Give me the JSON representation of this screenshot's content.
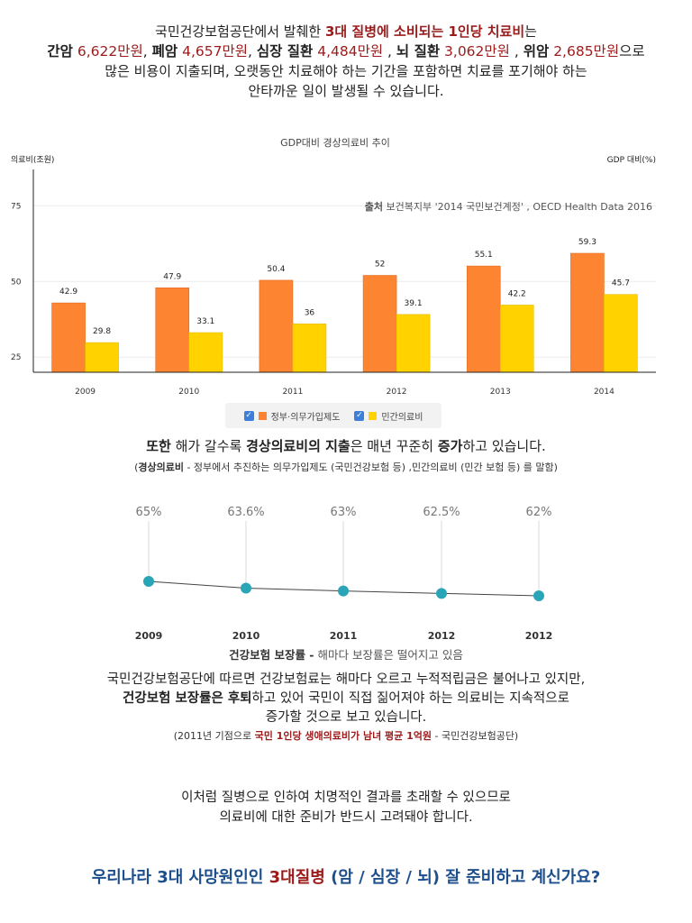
{
  "intro": {
    "line1_a": "국민건강보험공단에서 발췌한 ",
    "line1_b": "3대 질병에 소비되는 1인당 치료비",
    "line1_c": "는",
    "items": [
      {
        "name": "간암",
        "amount": "6,622만원",
        "sep": ", "
      },
      {
        "name": "폐암",
        "amount": "4,657만원",
        "sep": ", "
      },
      {
        "name": "심장 질환",
        "amount": "4,484만원",
        "sep": " , "
      },
      {
        "name": "뇌 질환",
        "amount": "3,062만원",
        "sep": " , "
      },
      {
        "name": "위암",
        "amount": "2,685만원",
        "sep": "으로"
      }
    ],
    "line3": "많은 비용이 지출되며, 오랫동안 치료해야 하는 기간을 포함하면 치료를 포기해야 하는",
    "line4": "안타까운 일이 발생될 수 있습니다."
  },
  "bar_chart": {
    "source_label": "출처",
    "source_text": " 보건복지부 '2014 국민보건계정' , OECD Health Data 2016",
    "colors": {
      "government": "#fd8431",
      "private": "#ffd200",
      "axis": "#222222",
      "grid": "#ececec"
    }
  },
  "legend": {
    "government": "정부·의무가입제도",
    "private": "민간의료비"
  },
  "trend": {
    "a": "또한",
    "b": " 해가 갈수록 ",
    "c": "경상의료비의 지출",
    "d": "은 매년 꾸준히 ",
    "e": "증가",
    "f": "하고 있습니다."
  },
  "note": {
    "open": "(",
    "term": "경상의료비",
    "text": " - 정부에서 추진하는 의무가입제도 (국민건강보험 등)  ,민간의료비 (민간 보험 등) 를 말함)"
  },
  "line_caption": {
    "bold": "건강보험 보장률 -",
    "rest": " 해마다 보장률은 떨어지고 있음"
  },
  "body": {
    "line1": "국민건강보험공단에 따르면 건강보험료는 해마다 오르고 누적적립금은 불어나고 있지만,",
    "line2_bold": "건강보험 보장률은 후퇴",
    "line2_rest": "하고 있어 국민이 직접 짊어져야 하는 의료비는 지속적으로",
    "line3": "증가할 것으로 보고 있습니다."
  },
  "small_note": {
    "a": "(2011년 기점으로 ",
    "b": "국민 1인당 생애의료비가 남녀 평균 1억원",
    "c": " - 국민건강보험공단)"
  },
  "conclusion": {
    "line1": "이처럼 질병으로 인하여 치명적인 결과를 초래할 수 있으므로",
    "line2": "의료비에 대한 준비가 반드시 고려돼야 합니다."
  },
  "final": {
    "a": "우리나라 3대 사망원인인 ",
    "b": "3대질병",
    "c": " (암 / 심장 / 뇌) 잘 준비하고 계신가요?"
  },
  "chart_data": [
    {
      "type": "bar",
      "title": "GDP대비 경상의료비 추이",
      "ylabel": "의료비(조원)",
      "y2label": "GDP 대비(%)",
      "categories": [
        "2009",
        "2010",
        "2011",
        "2012",
        "2013",
        "2014"
      ],
      "series": [
        {
          "name": "정부·의무가입제도",
          "values": [
            42.9,
            47.9,
            50.4,
            52,
            55.1,
            59.3
          ]
        },
        {
          "name": "민간의료비",
          "values": [
            29.8,
            33.1,
            36,
            39.1,
            42.2,
            45.7
          ]
        }
      ],
      "ylim": [
        20,
        87
      ],
      "yticks": [
        25,
        50,
        75
      ],
      "grid": true,
      "legend": "bottom"
    },
    {
      "type": "line",
      "categories": [
        "2009",
        "2010",
        "2011",
        "2012",
        "2012"
      ],
      "values": [
        65,
        63.6,
        63,
        62.5,
        62
      ],
      "value_labels": [
        "65%",
        "63.6%",
        "63%",
        "62.5%",
        "62%"
      ],
      "ylim": [
        62,
        65
      ],
      "colors": {
        "point": "#2aa5b8",
        "line": "#444444",
        "stem": "#d8d8d8"
      }
    }
  ]
}
